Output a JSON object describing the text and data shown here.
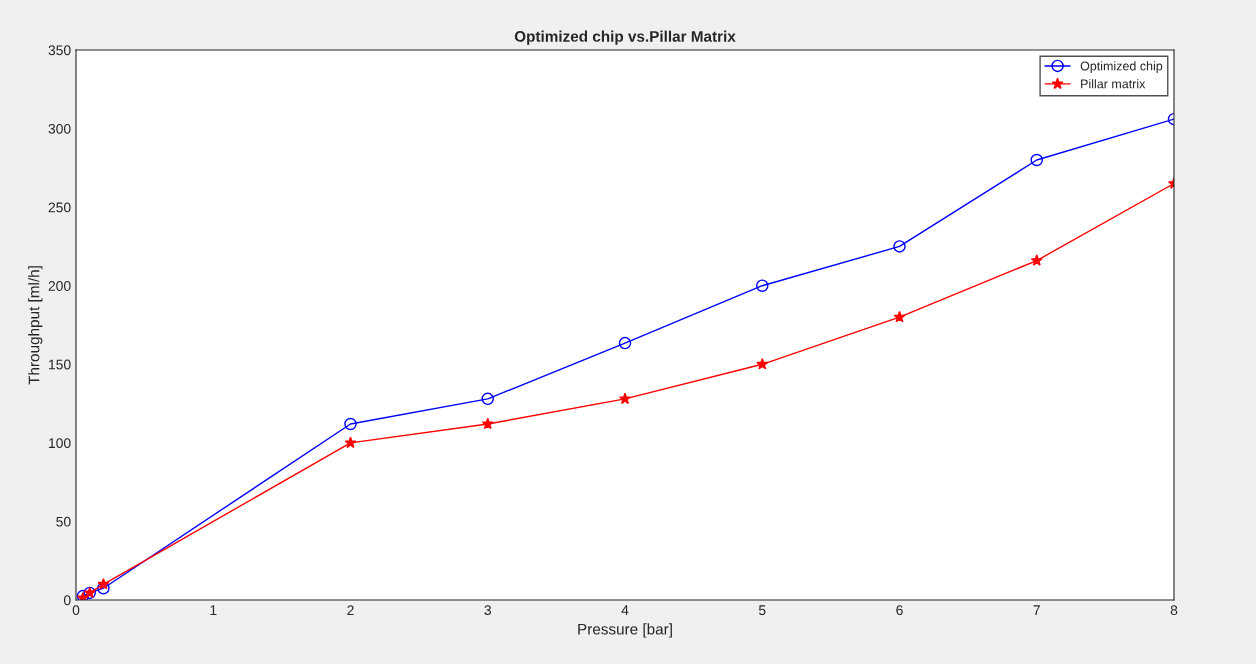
{
  "chart_data": {
    "type": "line",
    "title": "Optimized chip vs.Pillar Matrix",
    "xlabel": "Pressure [bar]",
    "ylabel": "Throughput [ml/h]",
    "x": [
      0.05,
      0.1,
      0.2,
      2,
      3,
      4,
      5,
      6,
      7,
      8
    ],
    "series": [
      {
        "name": "Optimized chip",
        "color": "#0000ff",
        "marker": "circle",
        "values": [
          2.5,
          4.5,
          7.5,
          112,
          128,
          163.5,
          200,
          225,
          280,
          306
        ]
      },
      {
        "name": "Pillar matrix",
        "color": "#ff0000",
        "marker": "star",
        "values": [
          1.3,
          4.5,
          10,
          100,
          112,
          128,
          150,
          180,
          216,
          265
        ]
      }
    ],
    "xlim": [
      0,
      8
    ],
    "xticks": [
      0,
      1,
      2,
      3,
      4,
      5,
      6,
      7,
      8
    ],
    "ylim": [
      0,
      350
    ],
    "yticks": [
      0,
      50,
      100,
      150,
      200,
      250,
      300,
      350
    ],
    "grid": false,
    "legend": "top right",
    "line_style": "solid"
  }
}
